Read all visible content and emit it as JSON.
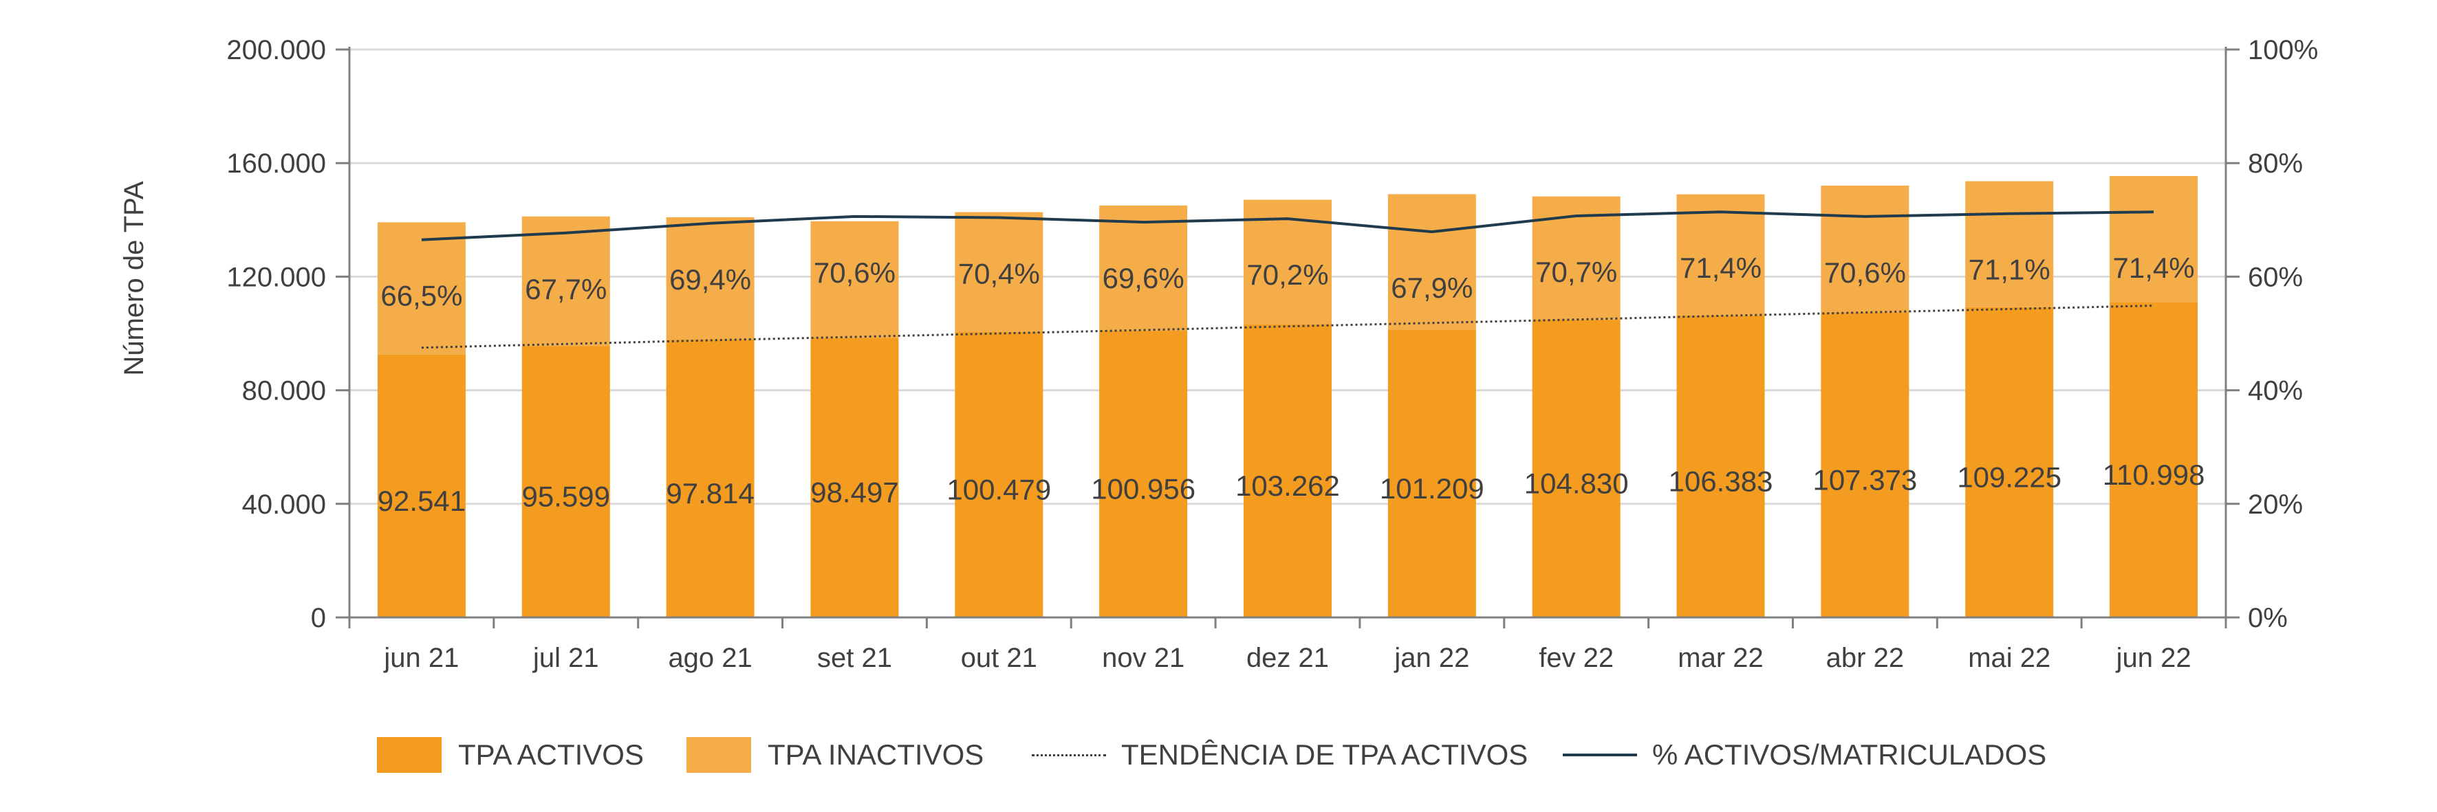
{
  "chart_data": {
    "type": "bar",
    "categories": [
      "jun 21",
      "jul 21",
      "ago 21",
      "set 21",
      "out 21",
      "nov 21",
      "dez 21",
      "jan 22",
      "fev 22",
      "mar 22",
      "abr 22",
      "mai 22",
      "jun 22"
    ],
    "ylabel": "Número de TPA",
    "ylim": [
      0,
      200000
    ],
    "y2lim": [
      0,
      100
    ],
    "yticks": [
      "0",
      "40.000",
      "80.000",
      "120.000",
      "160.000",
      "200.000"
    ],
    "y2ticks": [
      "0%",
      "20%",
      "40%",
      "60%",
      "80%",
      "100%"
    ],
    "grid": true,
    "legend_position": "bottom",
    "series": [
      {
        "name": "TPA ACTIVOS",
        "type": "bar",
        "stacked": true,
        "color": "#f39c1f",
        "values": [
          92541,
          95599,
          97814,
          98497,
          100479,
          100956,
          103262,
          101209,
          104830,
          106383,
          107373,
          109225,
          110998
        ],
        "labels": [
          "92.541",
          "95.599",
          "97.814",
          "98.497",
          "100.479",
          "100.956",
          "103.262",
          "101.209",
          "104.830",
          "106.383",
          "107.373",
          "109.225",
          "110.998"
        ]
      },
      {
        "name": "TPA INACTIVOS",
        "type": "bar",
        "stacked": true,
        "color": "#f5ad4a",
        "values": [
          46617,
          45610,
          43127,
          41015,
          42247,
          44093,
          43836,
          47846,
          43440,
          42610,
          44704,
          44398,
          44460
        ]
      },
      {
        "name": "TENDÊNCIA DE TPA ACTIVOS",
        "type": "line",
        "style": "dotted",
        "color": "#404040",
        "values": [
          95000,
          96300,
          97600,
          98800,
          100000,
          101200,
          102500,
          103700,
          104900,
          106200,
          107400,
          108600,
          109800
        ]
      },
      {
        "name": "% ACTIVOS/MATRICULADOS",
        "type": "line",
        "axis": "right",
        "color": "#1f3b4d",
        "values": [
          66.5,
          67.7,
          69.4,
          70.6,
          70.4,
          69.6,
          70.2,
          67.9,
          70.7,
          71.4,
          70.6,
          71.1,
          71.4
        ],
        "labels": [
          "66,5%",
          "67,7%",
          "69,4%",
          "70,6%",
          "70,4%",
          "69,6%",
          "70,2%",
          "67,9%",
          "70,7%",
          "71,4%",
          "70,6%",
          "71,1%",
          "71,4%"
        ]
      }
    ]
  }
}
